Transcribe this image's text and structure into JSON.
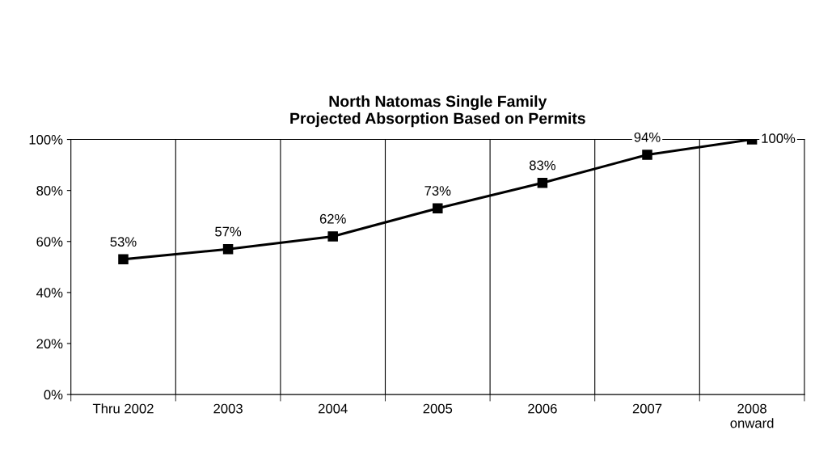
{
  "chart_data": {
    "type": "line",
    "title": "North Natomas Single Family\nProjected Absorption Based on Permits",
    "categories": [
      "Thru 2002",
      "2003",
      "2004",
      "2005",
      "2006",
      "2007",
      "2008\nonward"
    ],
    "series": [
      {
        "color": "#000000",
        "values": [
          53,
          57,
          62,
          73,
          83,
          94,
          100
        ]
      }
    ],
    "ylim": [
      0,
      100
    ],
    "yticks": [
      {
        "value": 0,
        "label": "0%"
      },
      {
        "value": 20,
        "label": "20%"
      },
      {
        "value": 40,
        "label": "40%"
      },
      {
        "value": 60,
        "label": "60%"
      },
      {
        "value": 80,
        "label": "80%"
      },
      {
        "value": 100,
        "label": "100%"
      }
    ],
    "value_labels": [
      "53%",
      "57%",
      "62%",
      "73%",
      "83%",
      "94%",
      "100%"
    ],
    "grid": "x",
    "marker": "square",
    "line_style": "solid",
    "legend": false
  }
}
